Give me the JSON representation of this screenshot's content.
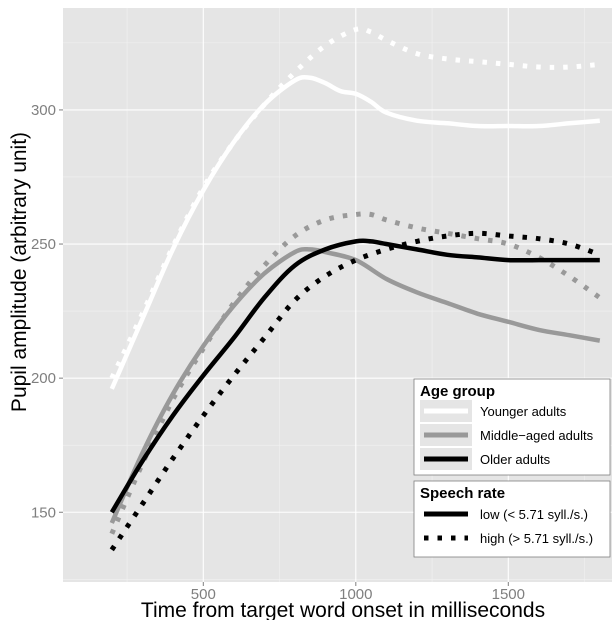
{
  "chart_data": {
    "type": "line",
    "xlabel": "Time from target word onset in milliseconds",
    "ylabel": "Pupil amplitude (arbitrary unit)",
    "xlim": [
      40,
      1840
    ],
    "ylim": [
      124,
      338
    ],
    "x_ticks": [
      500,
      1000,
      1500
    ],
    "y_ticks": [
      150,
      200,
      250,
      300
    ],
    "grid": true,
    "background": "#e5e5e5",
    "legend_placement": "bottom-right",
    "series": [
      {
        "group": "Younger adults",
        "rate": "low",
        "color": "#ffffff",
        "style": "solid",
        "x": [
          200,
          300,
          400,
          500,
          600,
          700,
          800,
          850,
          900,
          950,
          1000,
          1050,
          1100,
          1200,
          1300,
          1400,
          1500,
          1600,
          1700,
          1800
        ],
        "y": [
          196,
          222,
          248,
          270,
          288,
          302,
          311,
          312,
          310,
          307,
          306,
          303,
          299,
          296,
          295,
          294,
          294,
          294,
          295,
          296
        ]
      },
      {
        "group": "Younger adults",
        "rate": "high",
        "color": "#ffffff",
        "style": "dotted",
        "x": [
          200,
          300,
          400,
          500,
          600,
          700,
          800,
          900,
          1000,
          1050,
          1100,
          1200,
          1300,
          1400,
          1500,
          1600,
          1700,
          1800
        ],
        "y": [
          200,
          224,
          249,
          271,
          288,
          302,
          314,
          324,
          330,
          329,
          326,
          321,
          319,
          318,
          317,
          316,
          316,
          317
        ]
      },
      {
        "group": "Middle-aged adults",
        "rate": "low",
        "color": "#999999",
        "style": "solid",
        "x": [
          200,
          300,
          400,
          500,
          600,
          700,
          800,
          850,
          900,
          1000,
          1100,
          1200,
          1300,
          1400,
          1500,
          1600,
          1700,
          1800
        ],
        "y": [
          146,
          172,
          194,
          212,
          227,
          239,
          247,
          248,
          247,
          244,
          237,
          232,
          228,
          224,
          221,
          218,
          216,
          214
        ]
      },
      {
        "group": "Middle-aged adults",
        "rate": "high",
        "color": "#999999",
        "style": "dotted",
        "x": [
          200,
          300,
          400,
          500,
          600,
          700,
          800,
          900,
          1000,
          1050,
          1100,
          1200,
          1300,
          1400,
          1500,
          1600,
          1700,
          1800
        ],
        "y": [
          142,
          168,
          192,
          211,
          228,
          242,
          253,
          259,
          261,
          261,
          259,
          256,
          254,
          252,
          250,
          245,
          238,
          230
        ]
      },
      {
        "group": "Older adults",
        "rate": "low",
        "color": "#000000",
        "style": "solid",
        "x": [
          200,
          300,
          400,
          500,
          600,
          700,
          800,
          900,
          1000,
          1050,
          1100,
          1200,
          1300,
          1400,
          1500,
          1600,
          1700,
          1800
        ],
        "y": [
          150,
          169,
          186,
          201,
          215,
          230,
          242,
          248,
          251,
          251,
          250,
          248,
          246,
          245,
          244,
          244,
          244,
          244
        ]
      },
      {
        "group": "Older adults",
        "rate": "high",
        "color": "#000000",
        "style": "dotted",
        "x": [
          200,
          300,
          400,
          500,
          600,
          700,
          800,
          900,
          1000,
          1100,
          1200,
          1300,
          1400,
          1500,
          1600,
          1700,
          1800
        ],
        "y": [
          136,
          153,
          170,
          186,
          201,
          215,
          229,
          238,
          244,
          248,
          251,
          253,
          254,
          253,
          252,
          250,
          246
        ]
      }
    ],
    "legend": {
      "age_title": "Age group",
      "age_items": [
        {
          "label": "Younger adults",
          "color": "#ffffff"
        },
        {
          "label": "Middle−aged adults",
          "color": "#999999"
        },
        {
          "label": "Older adults",
          "color": "#000000"
        }
      ],
      "rate_title": "Speech rate",
      "rate_items": [
        {
          "label": "low (< 5.71 syll./s.)",
          "style": "solid"
        },
        {
          "label": "high (> 5.71 syll./s.)",
          "style": "dotted"
        }
      ]
    }
  }
}
